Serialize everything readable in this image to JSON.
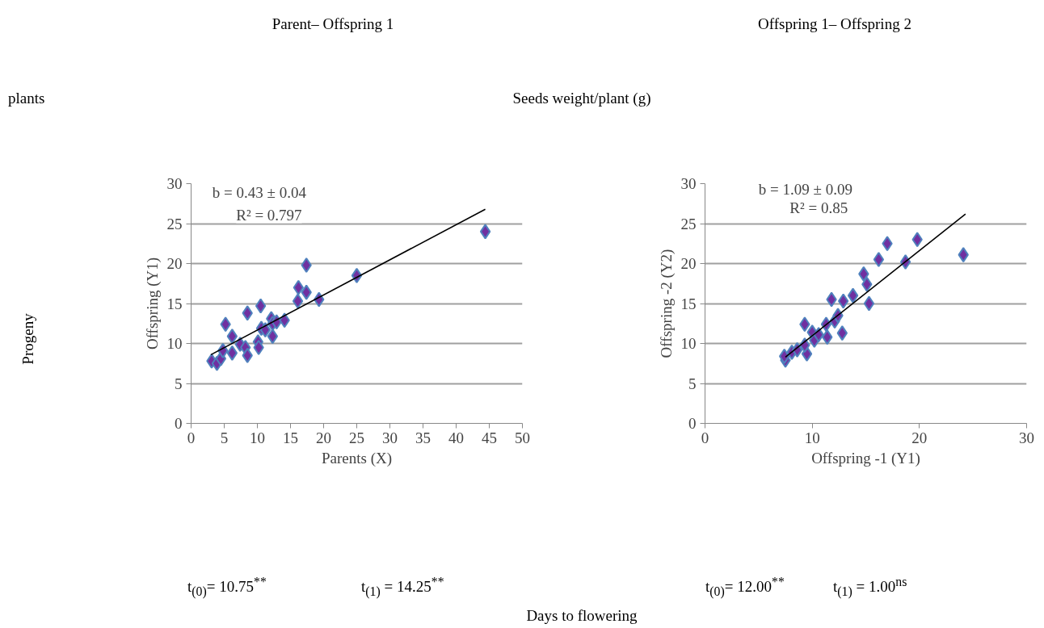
{
  "chart_data": [
    {
      "type": "scatter",
      "title": "Parent– Offspring 1",
      "xlabel": "Parents (X)",
      "ylabel": "Offspring (Y1)",
      "annotations": [
        "plants",
        "Progeny",
        "b =  0.43  ± 0.04",
        "R² = 0.797",
        "t$_{(0)}$= 10.75$^{**}$",
        "t$_{(1)}$ = 14.25$^{**}$"
      ],
      "xlim": [
        0,
        50
      ],
      "xticks": [
        0,
        5,
        10,
        15,
        20,
        25,
        30,
        35,
        40,
        45,
        50
      ],
      "ylim": [
        0,
        30
      ],
      "yticks": [
        0,
        5,
        10,
        15,
        20,
        25,
        30
      ],
      "grid": "y",
      "series": [
        {
          "type": "scatter",
          "marker": "diamond",
          "color": "#7030a0",
          "x": [
            3.1,
            3.9,
            4.5,
            4.8,
            5.2,
            6.2,
            6.2,
            7.4,
            8.2,
            8.5,
            8.5,
            10.1,
            10.2,
            10.5,
            10.6,
            11.2,
            12.1,
            12.3,
            12.3,
            12.9,
            14.1,
            16.1,
            16.2,
            17.4,
            17.4,
            19.3,
            25.0,
            44.4
          ],
          "values": [
            7.8,
            7.5,
            8.1,
            9.1,
            12.4,
            10.9,
            8.8,
            9.9,
            9.5,
            8.5,
            13.8,
            10.2,
            9.5,
            14.7,
            11.9,
            11.7,
            13.1,
            12.5,
            10.9,
            12.7,
            12.9,
            15.3,
            17.0,
            16.4,
            19.8,
            15.5,
            18.5,
            24.0
          ]
        },
        {
          "type": "line",
          "color": "#000000",
          "x": [
            3.0,
            44.4
          ],
          "values": [
            8.6,
            26.8
          ]
        }
      ]
    },
    {
      "type": "scatter",
      "title": "Offspring 1– Offspring 2",
      "xlabel": "Offspring -1 (Y1)",
      "ylabel": "Offspring -2 (Y2)",
      "annotations": [
        "Seeds weight/plant (g)",
        "b =    1.09 ± 0.09",
        "R² = 0.85",
        "t$_{(0)}$= 12.00$^{**}$",
        "t$_{(1)}$ = 1.00$^{ns}$",
        "Days to flowering"
      ],
      "xlim": [
        0,
        30
      ],
      "xticks": [
        0,
        10,
        20,
        30
      ],
      "ylim": [
        0,
        30
      ],
      "yticks": [
        0,
        5,
        10,
        15,
        20,
        25,
        30
      ],
      "grid": "y",
      "series": [
        {
          "type": "scatter",
          "marker": "diamond",
          "color": "#7030a0",
          "x": [
            7.5,
            7.4,
            8.1,
            8.6,
            9.5,
            9.3,
            9.3,
            10.0,
            10.2,
            10.6,
            11.3,
            11.4,
            11.8,
            12.1,
            12.4,
            12.8,
            12.9,
            13.8,
            14.8,
            15.1,
            15.3,
            16.2,
            17.0,
            18.7,
            19.8,
            24.1
          ],
          "values": [
            7.9,
            8.4,
            8.9,
            9.2,
            8.7,
            12.4,
            9.8,
            11.4,
            10.4,
            11.1,
            12.4,
            10.8,
            15.5,
            12.8,
            13.5,
            11.3,
            15.3,
            16.0,
            18.7,
            17.4,
            15.0,
            20.5,
            22.5,
            20.2,
            23.0,
            21.1
          ]
        },
        {
          "type": "line",
          "color": "#000000",
          "x": [
            7.5,
            24.3
          ],
          "values": [
            8.3,
            26.2
          ]
        }
      ]
    }
  ]
}
